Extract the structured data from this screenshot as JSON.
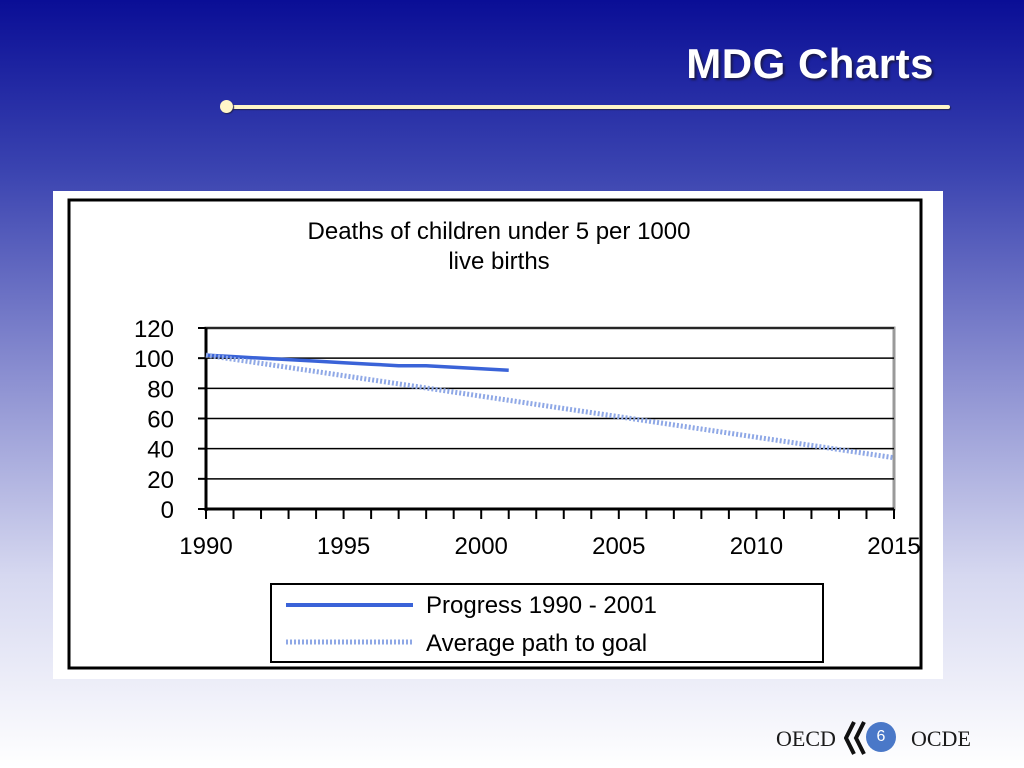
{
  "slide": {
    "title": "MDG Charts",
    "page_number": "6"
  },
  "footer": {
    "logo_left": "OECD",
    "logo_right": "OCDE"
  },
  "colors": {
    "background_top": "#0a0e96",
    "title_rule": "#fff6c8",
    "progress_line": "#3a63d8",
    "goal_line": "#8fa8e6"
  },
  "chart_data": {
    "type": "line",
    "title_line1": "Deaths of children under 5 per 1000",
    "title_line2": "live births",
    "x_ticks": [
      "1990",
      "1995",
      "2000",
      "2005",
      "2010",
      "2015"
    ],
    "y_ticks": [
      "0",
      "20",
      "40",
      "60",
      "80",
      "100",
      "120"
    ],
    "xlim": [
      1990,
      2015
    ],
    "ylim": [
      0,
      120
    ],
    "grid": true,
    "legend_position": "bottom",
    "series": [
      {
        "name": "Progress 1990 - 2001",
        "style": "solid",
        "x": [
          1990,
          1991,
          1992,
          1993,
          1994,
          1995,
          1996,
          1997,
          1998,
          1999,
          2000,
          2001
        ],
        "y": [
          102,
          101,
          100,
          99,
          98,
          97,
          96,
          95,
          95,
          94,
          93,
          92
        ]
      },
      {
        "name": "Average path to goal",
        "style": "dotted",
        "x": [
          1990,
          2015
        ],
        "y": [
          102,
          34
        ]
      }
    ]
  }
}
